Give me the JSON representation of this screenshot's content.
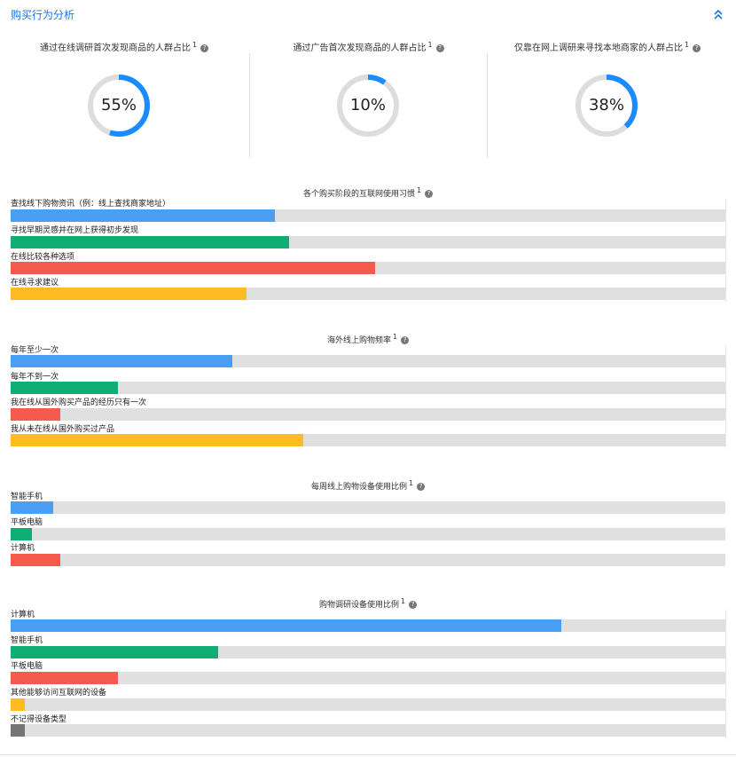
{
  "header": {
    "title": "购买行为分析",
    "collapse_icon": "chevron-double-up-icon"
  },
  "donuts": [
    {
      "title": "通过在线调研首次发现商品的人群占比",
      "sup": "1",
      "percent": 55,
      "label": "55%",
      "color": "#1a8cff"
    },
    {
      "title": "通过广告首次发现商品的人群占比",
      "sup": "1",
      "percent": 10,
      "label": "10%",
      "color": "#1a8cff"
    },
    {
      "title": "仅靠在网上调研来寻找本地商家的人群占比",
      "sup": "1",
      "percent": 38,
      "label": "38%",
      "color": "#1a8cff"
    }
  ],
  "sections": [
    {
      "title": "各个购买阶段的互联网使用习惯",
      "sup": "1",
      "bars": [
        {
          "label": "查找线下购物资讯（例：线上查找商家地址）",
          "value": 37,
          "color": "#4a9ff5"
        },
        {
          "label": "寻找早期灵感并在网上获得初步发现",
          "value": 39,
          "color": "#0fae75"
        },
        {
          "label": "在线比较各种选项",
          "value": 51,
          "color": "#f55a4e"
        },
        {
          "label": "在线寻求建议",
          "value": 33,
          "color": "#ffbb22"
        }
      ]
    },
    {
      "title": "海外线上购物频率",
      "sup": "1",
      "bars": [
        {
          "label": "每年至少一次",
          "value": 31,
          "color": "#4a9ff5"
        },
        {
          "label": "每年不到一次",
          "value": 15,
          "color": "#0fae75"
        },
        {
          "label": "我在线从国外购买产品的经历只有一次",
          "value": 7,
          "color": "#f55a4e"
        },
        {
          "label": "我从未在线从国外购买过产品",
          "value": 41,
          "color": "#ffbb22"
        }
      ]
    },
    {
      "title": "每周线上购物设备使用比例",
      "sup": "1",
      "bars": [
        {
          "label": "智能手机",
          "value": 6,
          "color": "#4a9ff5"
        },
        {
          "label": "平板电脑",
          "value": 3,
          "color": "#0fae75"
        },
        {
          "label": "计算机",
          "value": 7,
          "color": "#f55a4e"
        }
      ]
    },
    {
      "title": "购物调研设备使用比例",
      "sup": "1",
      "bars": [
        {
          "label": "计算机",
          "value": 77,
          "color": "#4a9ff5"
        },
        {
          "label": "智能手机",
          "value": 29,
          "color": "#0fae75"
        },
        {
          "label": "平板电脑",
          "value": 15,
          "color": "#f55a4e"
        },
        {
          "label": "其他能够访问互联网的设备",
          "value": 2,
          "color": "#ffbb22"
        },
        {
          "label": "不记得设备类型",
          "value": 2,
          "color": "#757575"
        }
      ]
    }
  ]
}
